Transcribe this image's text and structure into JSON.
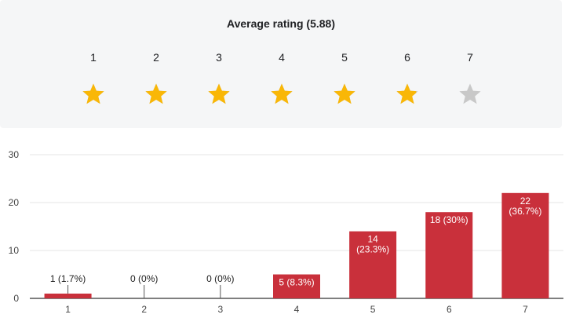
{
  "rating": {
    "title": "Average rating (5.88)",
    "average": 5.88,
    "scale": [
      "1",
      "2",
      "3",
      "4",
      "5",
      "6",
      "7"
    ],
    "star_color": "#f9b707",
    "star_empty_color": "#c8c8c8"
  },
  "chart_data": {
    "type": "bar",
    "categories": [
      "1",
      "2",
      "3",
      "4",
      "5",
      "6",
      "7"
    ],
    "values": [
      1,
      0,
      0,
      5,
      14,
      18,
      22
    ],
    "labels": [
      [
        "1 (1.7%)"
      ],
      [
        "0 (0%)"
      ],
      [
        "0 (0%)"
      ],
      [
        "5 (8.3%)"
      ],
      [
        "14",
        "(23.3%)"
      ],
      [
        "18 (30%)"
      ],
      [
        "22",
        "(36.7%)"
      ]
    ],
    "yticks": [
      "0",
      "10",
      "20",
      "30"
    ],
    "ylim": [
      0,
      30
    ],
    "bar_color": "#c9303b",
    "grid": true
  }
}
